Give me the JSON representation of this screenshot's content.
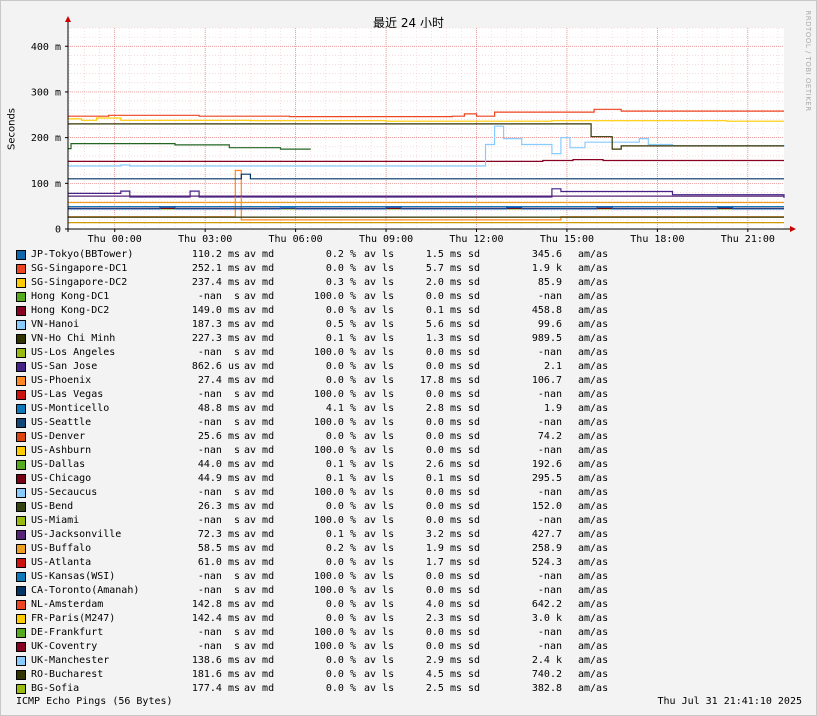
{
  "window": {
    "title": "最近 24 小时",
    "watermark": "RRDTOOL / TOBI OETIKER",
    "footer_left": "ICMP Echo Pings (56 Bytes)",
    "footer_right": "Thu Jul 31 21:41:10 2025"
  },
  "chart_data": {
    "type": "line",
    "ylabel": "Seconds",
    "ylim": [
      0,
      440
    ],
    "y_unit": "ms",
    "yticks": [
      {
        "v": 0,
        "label": "0"
      },
      {
        "v": 100,
        "label": "100 m"
      },
      {
        "v": 200,
        "label": "200 m"
      },
      {
        "v": 300,
        "label": "300 m"
      },
      {
        "v": 400,
        "label": "400 m"
      }
    ],
    "x_range_hours": [
      -1.55,
      22.2
    ],
    "x_hours_note": "hours of Jul 31, 0 = midnight",
    "xticks": [
      {
        "h": 0,
        "label": "Thu 00:00"
      },
      {
        "h": 3,
        "label": "Thu 03:00"
      },
      {
        "h": 6,
        "label": "Thu 06:00"
      },
      {
        "h": 9,
        "label": "Thu 09:00"
      },
      {
        "h": 12,
        "label": "Thu 12:00"
      },
      {
        "h": 15,
        "label": "Thu 15:00"
      },
      {
        "h": 18,
        "label": "Thu 18:00"
      },
      {
        "h": 21,
        "label": "Thu 21:00"
      }
    ],
    "grid": true,
    "series": [
      {
        "color": "#ee4422",
        "steps": [
          [
            -1.55,
            247
          ],
          [
            -0.2,
            249
          ],
          [
            2.8,
            247
          ],
          [
            5.8,
            246
          ],
          [
            11.2,
            247
          ],
          [
            11.6,
            252
          ],
          [
            12.0,
            247
          ],
          [
            12.6,
            256
          ],
          [
            15.9,
            262
          ],
          [
            16.8,
            258
          ],
          [
            22.2,
            258
          ]
        ]
      },
      {
        "color": "#ffcc00",
        "steps": [
          [
            -1.55,
            241
          ],
          [
            -1.1,
            238
          ],
          [
            -0.6,
            243
          ],
          [
            0.2,
            238
          ],
          [
            4.5,
            237
          ],
          [
            9.0,
            236
          ],
          [
            14.5,
            237
          ],
          [
            20.3,
            236
          ],
          [
            22.2,
            236
          ]
        ]
      },
      {
        "color": "#226622",
        "steps": [
          [
            -1.55,
            176
          ],
          [
            -1.45,
            187
          ],
          [
            2.0,
            184
          ],
          [
            3.8,
            178
          ],
          [
            5.5,
            175
          ],
          [
            6.5,
            175
          ]
        ]
      },
      {
        "color": "#880022",
        "steps": [
          [
            -1.55,
            148
          ],
          [
            14.2,
            150
          ],
          [
            15.2,
            152
          ],
          [
            16.2,
            150
          ],
          [
            22.2,
            150
          ]
        ]
      },
      {
        "color": "#88ccff",
        "steps": [
          [
            -1.55,
            138
          ],
          [
            0.2,
            140
          ],
          [
            0.5,
            138
          ],
          [
            12.3,
            185
          ],
          [
            12.6,
            225
          ],
          [
            12.9,
            198
          ],
          [
            13.5,
            185
          ],
          [
            14.5,
            165
          ],
          [
            14.8,
            200
          ],
          [
            15.1,
            178
          ],
          [
            15.6,
            190
          ],
          [
            17.4,
            198
          ],
          [
            17.7,
            185
          ],
          [
            18.5,
            182
          ],
          [
            22.2,
            184
          ]
        ]
      },
      {
        "color": "#333300",
        "steps": [
          [
            -1.55,
            230
          ],
          [
            14.2,
            230
          ],
          [
            15.8,
            202
          ],
          [
            16.5,
            175
          ],
          [
            16.8,
            182
          ],
          [
            22.2,
            182
          ]
        ]
      },
      {
        "color": "#442288",
        "steps": [
          [
            -1.55,
            78
          ],
          [
            0.2,
            83
          ],
          [
            0.5,
            70
          ],
          [
            2.5,
            83
          ],
          [
            2.8,
            70
          ],
          [
            14.2,
            70
          ],
          [
            14.5,
            88
          ],
          [
            14.8,
            82
          ],
          [
            18.5,
            75
          ],
          [
            22.2,
            68
          ]
        ]
      },
      {
        "color": "#ff8822",
        "steps": [
          [
            -1.55,
            27
          ],
          [
            4.0,
            128
          ],
          [
            4.2,
            20
          ],
          [
            14.8,
            27
          ],
          [
            22.2,
            27
          ]
        ]
      },
      {
        "color": "#1177bb",
        "steps": [
          [
            -1.55,
            49
          ],
          [
            22.2,
            49
          ]
        ]
      },
      {
        "color": "#dd4411",
        "steps": [
          [
            -1.55,
            26
          ],
          [
            22.2,
            26
          ]
        ]
      },
      {
        "color": "#55aa22",
        "steps": [
          [
            -1.55,
            44
          ],
          [
            22.2,
            44
          ]
        ]
      },
      {
        "color": "#770011",
        "steps": [
          [
            -1.55,
            45
          ],
          [
            22.2,
            45
          ]
        ]
      },
      {
        "color": "#334411",
        "steps": [
          [
            -1.55,
            26
          ],
          [
            22.2,
            26
          ]
        ]
      },
      {
        "color": "#552277",
        "steps": [
          [
            -1.55,
            72
          ],
          [
            22.2,
            72
          ]
        ]
      },
      {
        "color": "#eea022",
        "steps": [
          [
            -1.55,
            58
          ],
          [
            22.2,
            58
          ]
        ]
      },
      {
        "color": "#003366",
        "steps": [
          [
            -1.55,
            110
          ],
          [
            4.2,
            120
          ],
          [
            4.5,
            110
          ],
          [
            22.2,
            110
          ]
        ]
      },
      {
        "color": "#cc9900",
        "steps": [
          [
            -1.55,
            14
          ],
          [
            22.2,
            14
          ]
        ]
      },
      {
        "color": "#1155aa",
        "steps": [
          [
            -1.55,
            44
          ],
          [
            1.5,
            48
          ],
          [
            2.0,
            44
          ],
          [
            5.5,
            46
          ],
          [
            6.0,
            44
          ],
          [
            9.0,
            48
          ],
          [
            9.5,
            44
          ],
          [
            13.0,
            47
          ],
          [
            13.5,
            44
          ],
          [
            16.0,
            48
          ],
          [
            16.5,
            44
          ],
          [
            20.0,
            47
          ],
          [
            20.5,
            44
          ],
          [
            22.2,
            44
          ]
        ]
      }
    ]
  },
  "legend": {
    "rows": [
      {
        "color": "#1166aa",
        "name": "JP-Tokyo(BBTower)",
        "avg": "110.2 ms",
        "avg_label": "av md",
        "loss": "0.2 %",
        "loss_label": "av ls",
        "sd": "1.5 ms",
        "sd_label": "sd",
        "ratio": "345.6",
        "ratio_label": "am/as"
      },
      {
        "color": "#ee4422",
        "name": "SG-Singapore-DC1",
        "avg": "252.1 ms",
        "avg_label": "av md",
        "loss": "0.0 %",
        "loss_label": "av ls",
        "sd": "5.7 ms",
        "sd_label": "sd",
        "ratio": "1.9 k",
        "ratio_label": "am/as"
      },
      {
        "color": "#ffcc00",
        "name": "SG-Singapore-DC2",
        "avg": "237.4 ms",
        "avg_label": "av md",
        "loss": "0.3 %",
        "loss_label": "av ls",
        "sd": "2.0 ms",
        "sd_label": "sd",
        "ratio": "85.9",
        "ratio_label": "am/as"
      },
      {
        "color": "#55aa22",
        "name": "Hong Kong-DC1",
        "avg": "-nan  s",
        "avg_label": "av md",
        "loss": "100.0 %",
        "loss_label": "av ls",
        "sd": "0.0 ms",
        "sd_label": "sd",
        "ratio": "-nan",
        "ratio_label": "am/as"
      },
      {
        "color": "#880022",
        "name": "Hong Kong-DC2",
        "avg": "149.0 ms",
        "avg_label": "av md",
        "loss": "0.0 %",
        "loss_label": "av ls",
        "sd": "0.1 ms",
        "sd_label": "sd",
        "ratio": "458.8",
        "ratio_label": "am/as"
      },
      {
        "color": "#88ccff",
        "name": "VN-Hanoi",
        "avg": "187.3 ms",
        "avg_label": "av md",
        "loss": "0.5 %",
        "loss_label": "av ls",
        "sd": "5.6 ms",
        "sd_label": "sd",
        "ratio": "99.6",
        "ratio_label": "am/as"
      },
      {
        "color": "#333300",
        "name": "VN-Ho Chi Minh",
        "avg": "227.3 ms",
        "avg_label": "av md",
        "loss": "0.1 %",
        "loss_label": "av ls",
        "sd": "1.3 ms",
        "sd_label": "sd",
        "ratio": "989.5",
        "ratio_label": "am/as"
      },
      {
        "color": "#99bb11",
        "name": "US-Los Angeles",
        "avg": "-nan  s",
        "avg_label": "av md",
        "loss": "100.0 %",
        "loss_label": "av ls",
        "sd": "0.0 ms",
        "sd_label": "sd",
        "ratio": "-nan",
        "ratio_label": "am/as"
      },
      {
        "color": "#442288",
        "name": "US-San Jose",
        "avg": "862.6 us",
        "avg_label": "av md",
        "loss": "0.0 %",
        "loss_label": "av ls",
        "sd": "0.0 ms",
        "sd_label": "sd",
        "ratio": "2.1",
        "ratio_label": "am/as"
      },
      {
        "color": "#ff8822",
        "name": "US-Phoenix",
        "avg": "27.4 ms",
        "avg_label": "av md",
        "loss": "0.0 %",
        "loss_label": "av ls",
        "sd": "17.8 ms",
        "sd_label": "sd",
        "ratio": "106.7",
        "ratio_label": "am/as"
      },
      {
        "color": "#cc1111",
        "name": "US-Las Vegas",
        "avg": "-nan  s",
        "avg_label": "av md",
        "loss": "100.0 %",
        "loss_label": "av ls",
        "sd": "0.0 ms",
        "sd_label": "sd",
        "ratio": "-nan",
        "ratio_label": "am/as"
      },
      {
        "color": "#1177bb",
        "name": "US-Monticello",
        "avg": "48.8 ms",
        "avg_label": "av md",
        "loss": "4.1 %",
        "loss_label": "av ls",
        "sd": "2.8 ms",
        "sd_label": "sd",
        "ratio": "1.9",
        "ratio_label": "am/as"
      },
      {
        "color": "#114477",
        "name": "US-Seattle",
        "avg": "-nan  s",
        "avg_label": "av md",
        "loss": "100.0 %",
        "loss_label": "av ls",
        "sd": "0.0 ms",
        "sd_label": "sd",
        "ratio": "-nan",
        "ratio_label": "am/as"
      },
      {
        "color": "#dd4411",
        "name": "US-Denver",
        "avg": "25.6 ms",
        "avg_label": "av md",
        "loss": "0.0 %",
        "loss_label": "av ls",
        "sd": "0.0 ms",
        "sd_label": "sd",
        "ratio": "74.2",
        "ratio_label": "am/as"
      },
      {
        "color": "#ffcc00",
        "name": "US-Ashburn",
        "avg": "-nan  s",
        "avg_label": "av md",
        "loss": "100.0 %",
        "loss_label": "av ls",
        "sd": "0.0 ms",
        "sd_label": "sd",
        "ratio": "-nan",
        "ratio_label": "am/as"
      },
      {
        "color": "#55aa22",
        "name": "US-Dallas",
        "avg": "44.0 ms",
        "avg_label": "av md",
        "loss": "0.1 %",
        "loss_label": "av ls",
        "sd": "2.6 ms",
        "sd_label": "sd",
        "ratio": "192.6",
        "ratio_label": "am/as"
      },
      {
        "color": "#770011",
        "name": "US-Chicago",
        "avg": "44.9 ms",
        "avg_label": "av md",
        "loss": "0.1 %",
        "loss_label": "av ls",
        "sd": "0.1 ms",
        "sd_label": "sd",
        "ratio": "295.5",
        "ratio_label": "am/as"
      },
      {
        "color": "#88ccff",
        "name": "US-Secaucus",
        "avg": "-nan  s",
        "avg_label": "av md",
        "loss": "100.0 %",
        "loss_label": "av ls",
        "sd": "0.0 ms",
        "sd_label": "sd",
        "ratio": "-nan",
        "ratio_label": "am/as"
      },
      {
        "color": "#334411",
        "name": "US-Bend",
        "avg": "26.3 ms",
        "avg_label": "av md",
        "loss": "0.0 %",
        "loss_label": "av ls",
        "sd": "0.0 ms",
        "sd_label": "sd",
        "ratio": "152.0",
        "ratio_label": "am/as"
      },
      {
        "color": "#99bb11",
        "name": "US-Miami",
        "avg": "-nan  s",
        "avg_label": "av md",
        "loss": "100.0 %",
        "loss_label": "av ls",
        "sd": "0.0 ms",
        "sd_label": "sd",
        "ratio": "-nan",
        "ratio_label": "am/as"
      },
      {
        "color": "#552277",
        "name": "US-Jacksonville",
        "avg": "72.3 ms",
        "avg_label": "av md",
        "loss": "0.1 %",
        "loss_label": "av ls",
        "sd": "3.2 ms",
        "sd_label": "sd",
        "ratio": "427.7",
        "ratio_label": "am/as"
      },
      {
        "color": "#eea022",
        "name": "US-Buffalo",
        "avg": "58.5 ms",
        "avg_label": "av md",
        "loss": "0.2 %",
        "loss_label": "av ls",
        "sd": "1.9 ms",
        "sd_label": "sd",
        "ratio": "258.9",
        "ratio_label": "am/as"
      },
      {
        "color": "#cc1111",
        "name": "US-Atlanta",
        "avg": "61.0 ms",
        "avg_label": "av md",
        "loss": "0.0 %",
        "loss_label": "av ls",
        "sd": "1.7 ms",
        "sd_label": "sd",
        "ratio": "524.3",
        "ratio_label": "am/as"
      },
      {
        "color": "#1177bb",
        "name": "US-Kansas(WSI)",
        "avg": "-nan  s",
        "avg_label": "av md",
        "loss": "100.0 %",
        "loss_label": "av ls",
        "sd": "0.0 ms",
        "sd_label": "sd",
        "ratio": "-nan",
        "ratio_label": "am/as"
      },
      {
        "color": "#003366",
        "name": "CA-Toronto(Amanah)",
        "avg": "-nan  s",
        "avg_label": "av md",
        "loss": "100.0 %",
        "loss_label": "av ls",
        "sd": "0.0 ms",
        "sd_label": "sd",
        "ratio": "-nan",
        "ratio_label": "am/as"
      },
      {
        "color": "#ee4422",
        "name": "NL-Amsterdam",
        "avg": "142.8 ms",
        "avg_label": "av md",
        "loss": "0.0 %",
        "loss_label": "av ls",
        "sd": "4.0 ms",
        "sd_label": "sd",
        "ratio": "642.2",
        "ratio_label": "am/as"
      },
      {
        "color": "#ffcc00",
        "name": "FR-Paris(M247)",
        "avg": "142.4 ms",
        "avg_label": "av md",
        "loss": "0.0 %",
        "loss_label": "av ls",
        "sd": "2.3 ms",
        "sd_label": "sd",
        "ratio": "3.0 k",
        "ratio_label": "am/as"
      },
      {
        "color": "#55aa22",
        "name": "DE-Frankfurt",
        "avg": "-nan  s",
        "avg_label": "av md",
        "loss": "100.0 %",
        "loss_label": "av ls",
        "sd": "0.0 ms",
        "sd_label": "sd",
        "ratio": "-nan",
        "ratio_label": "am/as"
      },
      {
        "color": "#880022",
        "name": "UK-Coventry",
        "avg": "-nan  s",
        "avg_label": "av md",
        "loss": "100.0 %",
        "loss_label": "av ls",
        "sd": "0.0 ms",
        "sd_label": "sd",
        "ratio": "-nan",
        "ratio_label": "am/as"
      },
      {
        "color": "#88ccff",
        "name": "UK-Manchester",
        "avg": "138.6 ms",
        "avg_label": "av md",
        "loss": "0.0 %",
        "loss_label": "av ls",
        "sd": "2.9 ms",
        "sd_label": "sd",
        "ratio": "2.4 k",
        "ratio_label": "am/as"
      },
      {
        "color": "#333300",
        "name": "RO-Bucharest",
        "avg": "181.6 ms",
        "avg_label": "av md",
        "loss": "0.0 %",
        "loss_label": "av ls",
        "sd": "4.5 ms",
        "sd_label": "sd",
        "ratio": "740.2",
        "ratio_label": "am/as"
      },
      {
        "color": "#99bb11",
        "name": "BG-Sofia",
        "avg": "177.4 ms",
        "avg_label": "av md",
        "loss": "0.0 %",
        "loss_label": "av ls",
        "sd": "2.5 ms",
        "sd_label": "sd",
        "ratio": "382.8",
        "ratio_label": "am/as"
      }
    ]
  }
}
